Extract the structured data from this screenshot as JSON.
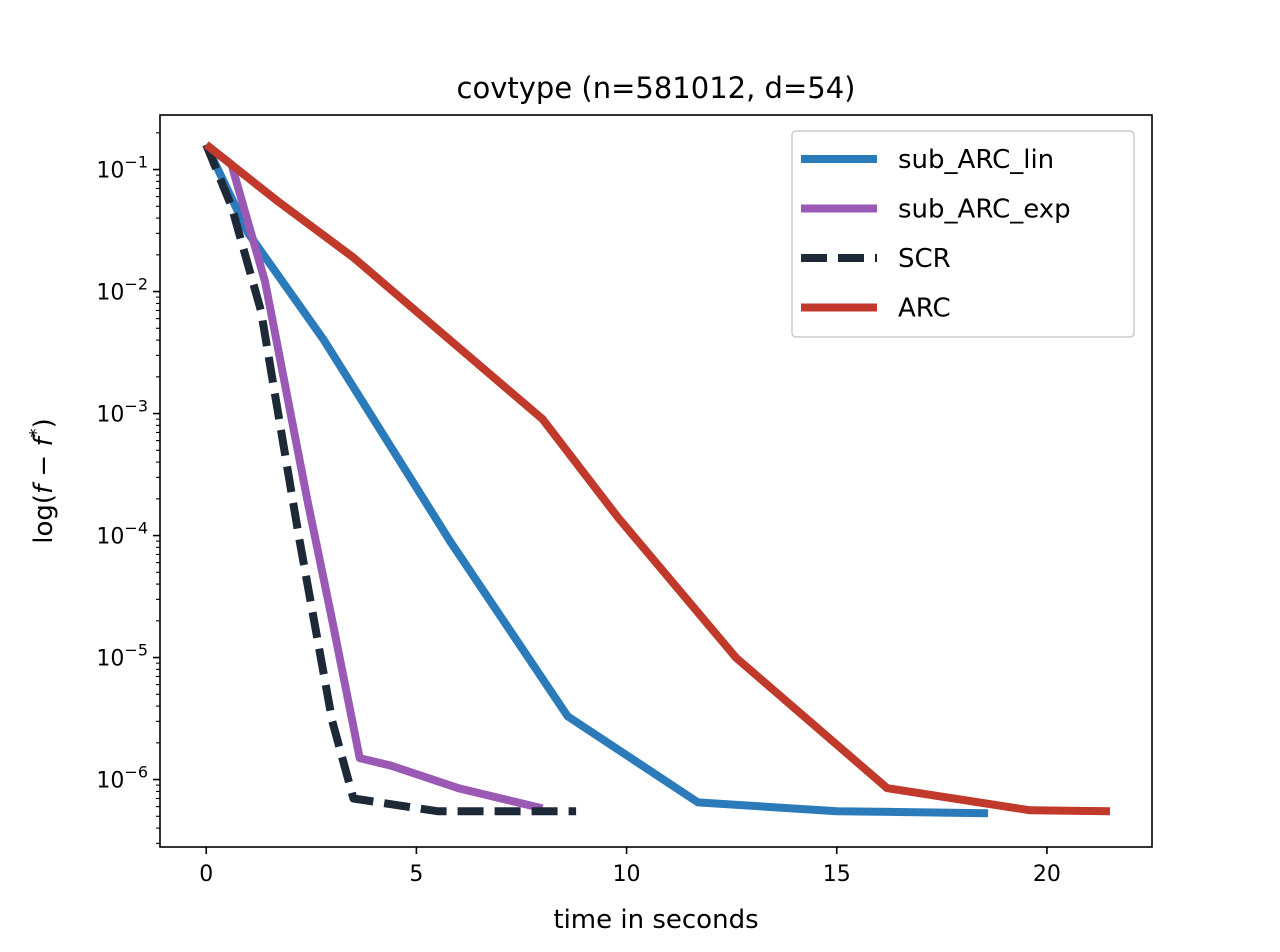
{
  "chart_data": {
    "type": "line",
    "title": "covtype (n=581012, d=54)",
    "xlabel": "time in seconds",
    "ylabel": "log(f − f*)",
    "ylabel_parts": {
      "prefix": "log(",
      "f1": "f",
      "minus": " − ",
      "f2": "f",
      "star": "*",
      "suffix": ")"
    },
    "xlim": [
      -1.1,
      22.5
    ],
    "ylim": [
      2.8e-07,
      0.28
    ],
    "yscale": "log",
    "grid": false,
    "legend_position": "top-right",
    "x_ticks": [
      0,
      5,
      10,
      15,
      20
    ],
    "x_tick_labels": [
      "0",
      "5",
      "10",
      "15",
      "20"
    ],
    "y_ticks": [
      {
        "value": 0.1,
        "base": "10",
        "exp": "−1"
      },
      {
        "value": 0.01,
        "base": "10",
        "exp": "−2"
      },
      {
        "value": 0.001,
        "base": "10",
        "exp": "−3"
      },
      {
        "value": 0.0001,
        "base": "10",
        "exp": "−4"
      },
      {
        "value": 1e-05,
        "base": "10",
        "exp": "−5"
      },
      {
        "value": 1e-06,
        "base": "10",
        "exp": "−6"
      }
    ],
    "series": [
      {
        "name": "sub_ARC_lin",
        "color": "#2b7bba",
        "dash": "solid",
        "x": [
          0,
          1,
          2.8,
          5.8,
          8.6,
          11.7,
          15.0,
          18.6
        ],
        "y": [
          0.16,
          0.03,
          0.004,
          9e-05,
          3.3e-06,
          6.5e-07,
          5.5e-07,
          5.3e-07
        ]
      },
      {
        "name": "sub_ARC_exp",
        "color": "#9b59b6",
        "dash": "solid",
        "x": [
          0,
          0.6,
          1.4,
          2.4,
          3.0,
          3.65,
          4.4,
          6.0,
          8.0
        ],
        "y": [
          0.16,
          0.11,
          0.012,
          0.0002,
          2e-05,
          1.5e-06,
          1.3e-06,
          8.5e-07,
          5.8e-07
        ]
      },
      {
        "name": "SCR",
        "color": "#1e2938",
        "dash": "dashed",
        "x": [
          0,
          0.6,
          1.3,
          2.2,
          3.0,
          3.5,
          5.5,
          8.8
        ],
        "y": [
          0.16,
          0.05,
          0.007,
          0.0001,
          3e-06,
          7e-07,
          5.5e-07,
          5.5e-07
        ]
      },
      {
        "name": "ARC",
        "color": "#c0392b",
        "dash": "solid",
        "x": [
          0,
          1.7,
          3.5,
          8.0,
          9.8,
          12.6,
          16.2,
          19.6,
          21.5
        ],
        "y": [
          0.16,
          0.055,
          0.019,
          0.0009,
          0.00014,
          1e-05,
          8.5e-07,
          5.6e-07,
          5.5e-07
        ]
      }
    ]
  }
}
